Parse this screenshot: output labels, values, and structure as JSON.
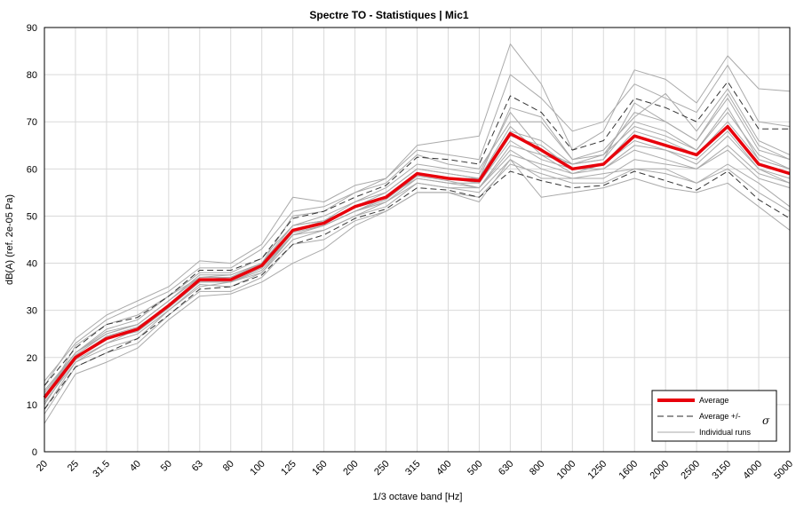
{
  "chart_data": {
    "type": "line",
    "title": "Spectre TO - Statistiques | Mic1",
    "xlabel": "1/3 octave band [Hz]",
    "ylabel": "dB(A) (ref. 2e-05 Pa)",
    "ylim": [
      0,
      90
    ],
    "yticks": [
      "0",
      "10",
      "20",
      "30",
      "40",
      "50",
      "60",
      "70",
      "80",
      "90"
    ],
    "grid": true,
    "legend_position": "bottom-right",
    "categories": [
      "20",
      "25",
      "31.5",
      "40",
      "50",
      "63",
      "80",
      "100",
      "125",
      "160",
      "200",
      "250",
      "315",
      "400",
      "500",
      "630",
      "800",
      "1000",
      "1250",
      "1600",
      "2000",
      "2500",
      "3150",
      "4000",
      "5000"
    ],
    "legend": {
      "average": "Average",
      "std": "Average +/-",
      "std_symbol": "σ",
      "runs": "Individual runs"
    },
    "series": [
      {
        "name": "Average",
        "role": "average",
        "color": "#e8000b",
        "values": [
          11.5,
          20,
          24,
          26,
          31,
          36.5,
          36.5,
          39.5,
          47,
          48.5,
          52,
          54,
          59,
          58,
          57.5,
          67.5,
          64,
          60,
          61,
          67,
          65,
          63,
          69,
          61,
          59
        ]
      },
      {
        "name": "Average +σ",
        "role": "std",
        "color": "#333333",
        "values": [
          14,
          22,
          27,
          28.5,
          33,
          38.5,
          38.5,
          41,
          49.5,
          51,
          54,
          56.5,
          62.5,
          62,
          61,
          75.5,
          72,
          64,
          66,
          75,
          73,
          70,
          78.5,
          68.5,
          68.5
        ]
      },
      {
        "name": "Average -σ",
        "role": "std",
        "color": "#333333",
        "values": [
          9,
          18,
          21,
          24,
          29,
          34.5,
          35,
          37.5,
          44,
          46,
          49.5,
          51.5,
          56,
          55.5,
          54,
          59.5,
          57.5,
          56,
          56.5,
          59.5,
          57.5,
          55.5,
          59.5,
          53.5,
          49.5
        ]
      },
      {
        "role": "run",
        "color": "#aaaaaa",
        "values": [
          6,
          16.5,
          19,
          22,
          28,
          33,
          33.5,
          36,
          40,
          43,
          48,
          51,
          55,
          55,
          53,
          62,
          54,
          55,
          56,
          58,
          56,
          55,
          57,
          52,
          47
        ]
      },
      {
        "role": "run",
        "color": "#aaaaaa",
        "values": [
          14,
          24,
          29,
          32,
          35,
          40.5,
          40,
          44,
          54,
          53,
          56.5,
          58,
          65,
          66,
          67,
          86.5,
          78,
          64,
          68,
          81,
          79,
          74,
          84,
          77,
          76.5
        ]
      },
      {
        "role": "run",
        "color": "#aaaaaa",
        "values": [
          11,
          22.5,
          27,
          29,
          33,
          37,
          37.5,
          40,
          50,
          51,
          55,
          57,
          63,
          61,
          60,
          70,
          70,
          62,
          64,
          71,
          76,
          68,
          77,
          66,
          63
        ]
      },
      {
        "role": "run",
        "color": "#aaaaaa",
        "values": [
          9,
          19,
          22,
          24,
          30,
          35,
          36,
          38,
          45,
          47,
          50,
          52,
          57,
          56,
          55,
          62,
          58,
          58,
          59,
          60,
          60,
          57,
          61,
          57,
          52
        ]
      },
      {
        "role": "run",
        "color": "#aaaaaa",
        "values": [
          12,
          21,
          25,
          27,
          32,
          37,
          37,
          40,
          48,
          49,
          52,
          55,
          60,
          59,
          58,
          68,
          66,
          61,
          63,
          69,
          67,
          64,
          72,
          63,
          60
        ]
      },
      {
        "role": "run",
        "color": "#aaaaaa",
        "values": [
          10,
          20,
          24,
          26,
          31,
          36,
          36,
          39,
          46,
          48,
          51,
          53,
          58,
          57,
          56,
          65,
          63,
          59,
          61,
          66,
          64,
          62,
          68,
          60,
          58
        ]
      },
      {
        "role": "run",
        "color": "#aaaaaa",
        "values": [
          13,
          21,
          26,
          28,
          33,
          38,
          38,
          41,
          48,
          50,
          53,
          56,
          61,
          60,
          59,
          72,
          64,
          61,
          62,
          74,
          70,
          66,
          75,
          64,
          62
        ]
      },
      {
        "role": "run",
        "color": "#aaaaaa",
        "values": [
          11,
          19.5,
          23,
          25,
          30,
          35.5,
          35,
          38,
          46,
          47,
          50,
          53,
          57,
          56,
          56,
          64,
          60,
          58,
          58,
          62,
          61,
          60,
          64,
          58,
          56
        ]
      },
      {
        "role": "run",
        "color": "#aaaaaa",
        "values": [
          15,
          23,
          28,
          31,
          34,
          39,
          39,
          43,
          51,
          52,
          55,
          58,
          64,
          63,
          62,
          80,
          75,
          68,
          70,
          78,
          75,
          72,
          82,
          70,
          69
        ]
      },
      {
        "role": "run",
        "color": "#aaaaaa",
        "values": [
          8,
          18,
          21,
          23,
          29,
          34,
          34,
          37,
          44,
          45,
          49,
          51,
          55,
          55,
          54,
          61,
          59,
          57,
          57,
          60,
          59,
          57,
          60,
          55,
          51
        ]
      },
      {
        "role": "run",
        "color": "#aaaaaa",
        "values": [
          12,
          20.5,
          25,
          27,
          32,
          37,
          37,
          40,
          47,
          49,
          52,
          54,
          59,
          58,
          57,
          67,
          65,
          60,
          61,
          68,
          66,
          63,
          70,
          62,
          60
        ]
      },
      {
        "role": "run",
        "color": "#aaaaaa",
        "values": [
          10.5,
          19,
          23,
          26,
          31,
          36,
          36,
          38.5,
          46,
          48,
          51,
          54,
          58,
          57,
          57,
          66,
          62,
          60,
          60,
          65,
          64,
          61,
          67,
          60,
          57
        ]
      },
      {
        "role": "run",
        "color": "#aaaaaa",
        "values": [
          11,
          20,
          24.5,
          26.5,
          31,
          36.5,
          37,
          39.5,
          47,
          48.5,
          52,
          54,
          59,
          58,
          58,
          69,
          63,
          61,
          62,
          70,
          68,
          64,
          73,
          62,
          60
        ]
      },
      {
        "role": "run",
        "color": "#aaaaaa",
        "values": [
          12.5,
          21,
          25.5,
          27,
          32,
          37.5,
          37.5,
          40,
          48,
          49,
          53,
          55,
          60,
          59,
          58,
          73,
          71,
          62,
          63,
          72,
          70,
          66,
          76,
          65,
          62
        ]
      },
      {
        "role": "run",
        "color": "#aaaaaa",
        "values": [
          10,
          20,
          24,
          25.5,
          30.5,
          36,
          36,
          39,
          46.5,
          48,
          51,
          53.5,
          58.5,
          57.5,
          56,
          63,
          61,
          59,
          60,
          64,
          62,
          60,
          65,
          59,
          57
        ]
      }
    ]
  }
}
